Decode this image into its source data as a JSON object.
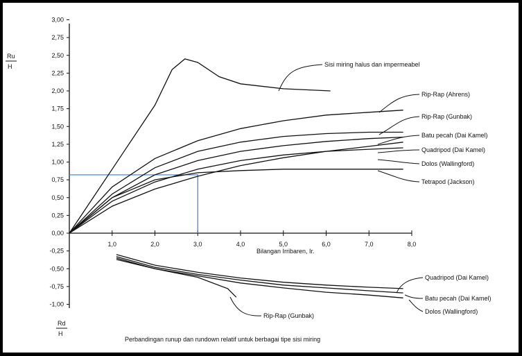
{
  "chart_data": {
    "type": "line",
    "title": "Perbandingan runup dan rundown relatif untuk berbagai tipe sisi miring",
    "xlabel": "Bilangan Irribaren, Ir.",
    "ylabel_top": {
      "num": "Ru",
      "den": "H"
    },
    "ylabel_bottom": {
      "num": "Rd",
      "den": "H"
    },
    "xlim": [
      0,
      8
    ],
    "ylim": [
      -1,
      3
    ],
    "x_ticks": [
      "1,0",
      "2,0",
      "3,0",
      "4,0",
      "5,0",
      "6,0",
      "7,0",
      "8,0"
    ],
    "y_ticks": [
      "3,00",
      "2,75",
      "2,50",
      "2,25",
      "2,00",
      "1,75",
      "1,50",
      "1,25",
      "1,00",
      "0,75",
      "0,50",
      "0,25",
      "0,00",
      "-0,25",
      "-0,50",
      "-0,75",
      "-1,00"
    ],
    "guide": {
      "x": 3.0,
      "y": 0.82,
      "color": "#2f7fd0"
    },
    "series": [
      {
        "name": "Sisi miring halus dan impermeabel",
        "points": [
          [
            0,
            0
          ],
          [
            1.0,
            0.9
          ],
          [
            2.0,
            1.8
          ],
          [
            2.4,
            2.3
          ],
          [
            2.7,
            2.45
          ],
          [
            3.0,
            2.4
          ],
          [
            3.5,
            2.2
          ],
          [
            4.0,
            2.1
          ],
          [
            5.0,
            2.03
          ],
          [
            6.1,
            2.0
          ]
        ]
      },
      {
        "name": "Rip-Rap (Ahrens)",
        "points": [
          [
            0,
            0
          ],
          [
            1.0,
            0.65
          ],
          [
            2.0,
            1.05
          ],
          [
            3.0,
            1.3
          ],
          [
            4.0,
            1.47
          ],
          [
            5.0,
            1.58
          ],
          [
            6.0,
            1.66
          ],
          [
            7.0,
            1.7
          ],
          [
            7.8,
            1.73
          ]
        ]
      },
      {
        "name": "Rip-Rap (Gunbak)",
        "points": [
          [
            0,
            0
          ],
          [
            1.0,
            0.55
          ],
          [
            2.0,
            0.92
          ],
          [
            3.0,
            1.15
          ],
          [
            4.0,
            1.28
          ],
          [
            5.0,
            1.36
          ],
          [
            6.0,
            1.4
          ],
          [
            7.0,
            1.42
          ],
          [
            7.8,
            1.42
          ]
        ]
      },
      {
        "name": "Batu pecah (Dai Kamel)",
        "points": [
          [
            0,
            0
          ],
          [
            1.0,
            0.5
          ],
          [
            2.0,
            0.82
          ],
          [
            3.0,
            1.02
          ],
          [
            4.0,
            1.15
          ],
          [
            5.0,
            1.23
          ],
          [
            6.0,
            1.29
          ],
          [
            7.0,
            1.33
          ],
          [
            7.8,
            1.35
          ]
        ]
      },
      {
        "name": "Quadripod (Dai Kamel)",
        "points": [
          [
            0,
            0
          ],
          [
            1.0,
            0.45
          ],
          [
            2.0,
            0.72
          ],
          [
            3.0,
            0.9
          ],
          [
            4.0,
            1.02
          ],
          [
            5.0,
            1.1
          ],
          [
            6.0,
            1.15
          ],
          [
            7.0,
            1.18
          ],
          [
            7.8,
            1.2
          ]
        ]
      },
      {
        "name": "Dolos (Wallingford)",
        "points": [
          [
            0,
            0
          ],
          [
            1.0,
            0.38
          ],
          [
            2.0,
            0.62
          ],
          [
            3.0,
            0.8
          ],
          [
            4.0,
            0.95
          ],
          [
            5.0,
            1.06
          ],
          [
            6.0,
            1.15
          ],
          [
            7.0,
            1.22
          ],
          [
            7.8,
            1.28
          ]
        ]
      },
      {
        "name": "Tetrapod (Jackson)",
        "points": [
          [
            0,
            0
          ],
          [
            1.0,
            0.5
          ],
          [
            2.0,
            0.75
          ],
          [
            3.0,
            0.85
          ],
          [
            4.0,
            0.88
          ],
          [
            5.0,
            0.9
          ],
          [
            6.0,
            0.9
          ],
          [
            7.0,
            0.9
          ],
          [
            7.8,
            0.9
          ]
        ]
      },
      {
        "name": "Quadripod (Dai Kamel)",
        "points": [
          [
            1.1,
            -0.3
          ],
          [
            2.0,
            -0.45
          ],
          [
            3.0,
            -0.55
          ],
          [
            4.0,
            -0.63
          ],
          [
            5.0,
            -0.69
          ],
          [
            6.0,
            -0.73
          ],
          [
            7.0,
            -0.76
          ],
          [
            7.8,
            -0.78
          ]
        ]
      },
      {
        "name": "Batu pecah (Dai Kamel)",
        "points": [
          [
            1.1,
            -0.33
          ],
          [
            2.0,
            -0.48
          ],
          [
            3.0,
            -0.58
          ],
          [
            4.0,
            -0.66
          ],
          [
            5.0,
            -0.73
          ],
          [
            6.0,
            -0.77
          ],
          [
            7.0,
            -0.81
          ],
          [
            7.8,
            -0.84
          ]
        ]
      },
      {
        "name": "Dolos (Wallingford)",
        "points": [
          [
            1.1,
            -0.35
          ],
          [
            2.0,
            -0.5
          ],
          [
            3.0,
            -0.6
          ],
          [
            4.0,
            -0.7
          ],
          [
            5.0,
            -0.77
          ],
          [
            6.0,
            -0.83
          ],
          [
            7.0,
            -0.87
          ],
          [
            7.8,
            -0.91
          ]
        ]
      },
      {
        "name": "Rip-Rap (Gunbak)",
        "points": [
          [
            1.1,
            -0.37
          ],
          [
            2.0,
            -0.5
          ],
          [
            3.0,
            -0.62
          ],
          [
            3.7,
            -0.78
          ],
          [
            3.9,
            -0.9
          ]
        ]
      }
    ]
  }
}
